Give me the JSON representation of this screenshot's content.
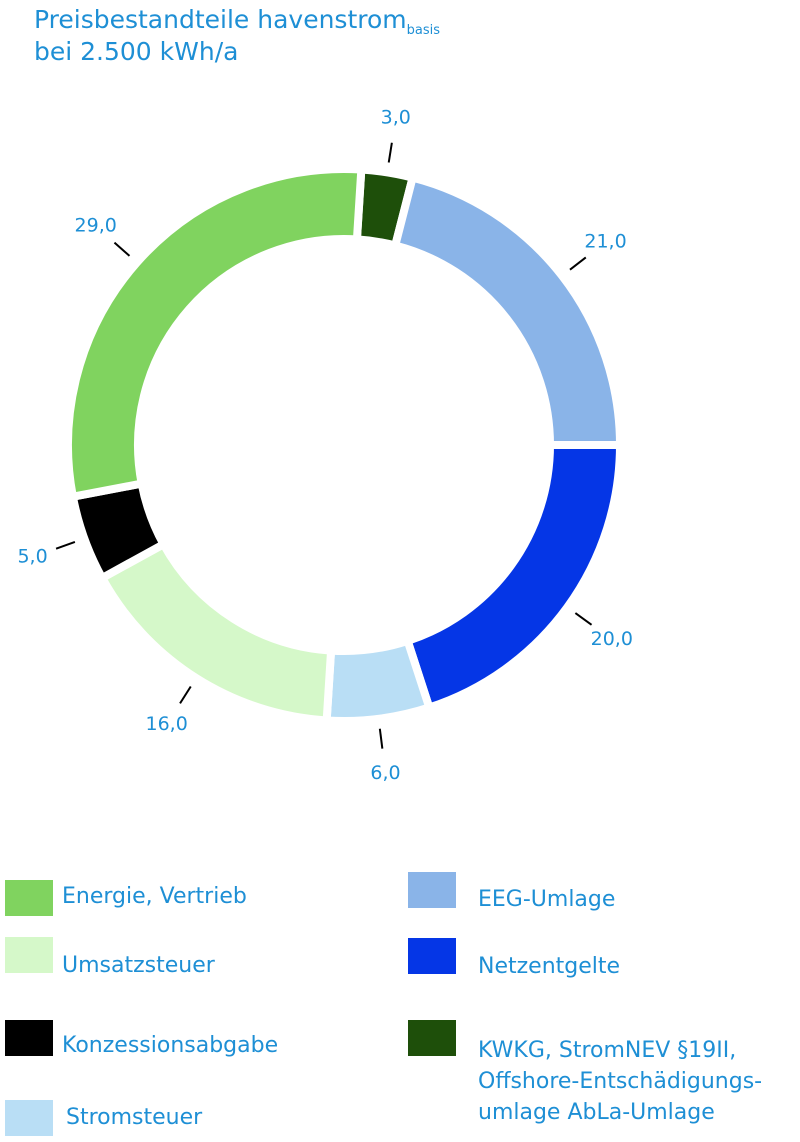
{
  "chart_data": {
    "type": "donut",
    "title": "Preisbestandteile havenstrom",
    "title_subscript": "basis",
    "subtitle": "bei 2.500 kWh/a",
    "series": [
      {
        "name": "KWKG, StromNEV §19II,\nOffshore-Entschädigungs-\numlage AbLa-Umlage",
        "color": "#1e4f0a",
        "value": 3,
        "value_label": "3,0"
      },
      {
        "name": "EEG-Umlage",
        "color": "#8ab4e8",
        "value": 21,
        "value_label": "21,0"
      },
      {
        "name": "Netzentgelte",
        "color": "#0536e6",
        "value": 20,
        "value_label": "20,0"
      },
      {
        "name": "Stromsteuer",
        "color": "#b9def5",
        "value": 6,
        "value_label": "6,0"
      },
      {
        "name": "Umsatzsteuer",
        "color": "#d5f8c9",
        "value": 16,
        "value_label": "16,0"
      },
      {
        "name": "Konzessionsabgabe",
        "color": "#000000",
        "value": 5,
        "value_label": "5,0"
      },
      {
        "name": "Energie, Vertrieb",
        "color": "#80d35f",
        "value": 29,
        "value_label": "29,0"
      }
    ]
  }
}
